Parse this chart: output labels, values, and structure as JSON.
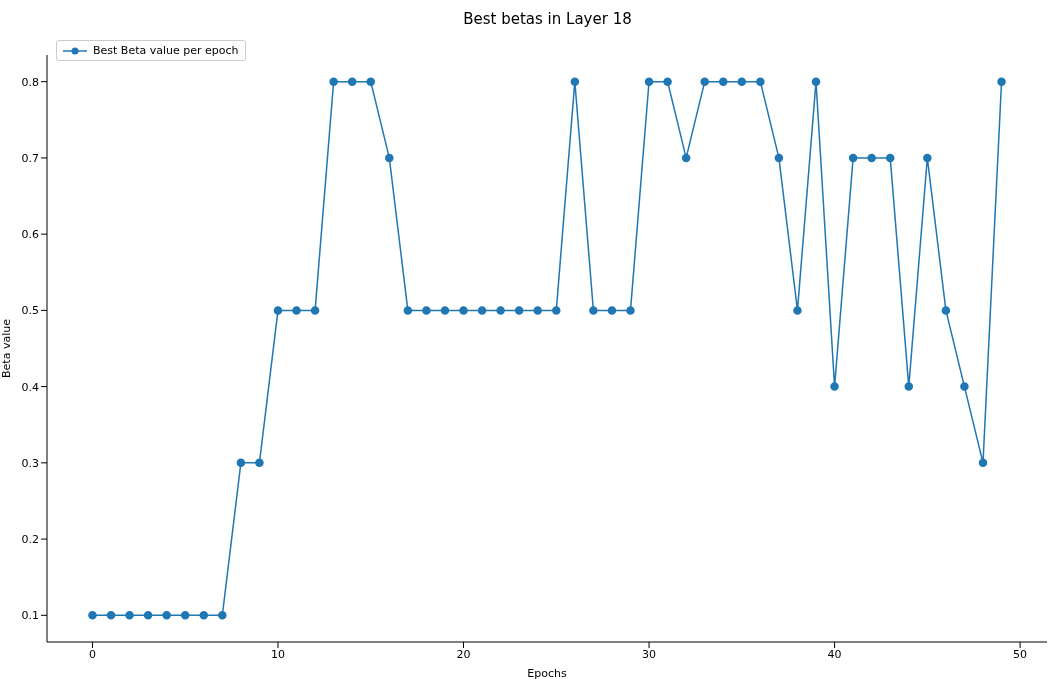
{
  "chart_data": {
    "type": "line",
    "title": "Best betas in Layer 18",
    "xlabel": "Epochs",
    "ylabel": "Beta value",
    "x": [
      0,
      1,
      2,
      3,
      4,
      5,
      6,
      7,
      8,
      9,
      10,
      11,
      12,
      13,
      14,
      15,
      16,
      17,
      18,
      19,
      20,
      21,
      22,
      23,
      24,
      25,
      26,
      27,
      28,
      29,
      30,
      31,
      32,
      33,
      34,
      35,
      36,
      37,
      38,
      39,
      40,
      41,
      42,
      43,
      44,
      45,
      46,
      47,
      48,
      49
    ],
    "series": [
      {
        "name": "Best Beta value per epoch",
        "color": "#1f77b4",
        "values": [
          0.1,
          0.1,
          0.1,
          0.1,
          0.1,
          0.1,
          0.1,
          0.1,
          0.3,
          0.3,
          0.5,
          0.5,
          0.5,
          0.8,
          0.8,
          0.8,
          0.7,
          0.5,
          0.5,
          0.5,
          0.5,
          0.5,
          0.5,
          0.5,
          0.5,
          0.5,
          0.8,
          0.5,
          0.5,
          0.5,
          0.8,
          0.8,
          0.7,
          0.8,
          0.8,
          0.8,
          0.8,
          0.7,
          0.5,
          0.8,
          0.4,
          0.7,
          0.7,
          0.7,
          0.4,
          0.7,
          0.5,
          0.4,
          0.3,
          0.8
        ]
      }
    ],
    "xlim": [
      -2.45,
      51.45
    ],
    "xticks": [
      0,
      10,
      20,
      30,
      40,
      50
    ],
    "ylim": [
      0.065,
      0.835
    ],
    "yticks": [
      0.1,
      0.2,
      0.3,
      0.4,
      0.5,
      0.6,
      0.7,
      0.8
    ],
    "grid": false,
    "legend": "top left",
    "marker": "circle",
    "line_style": "solid"
  }
}
